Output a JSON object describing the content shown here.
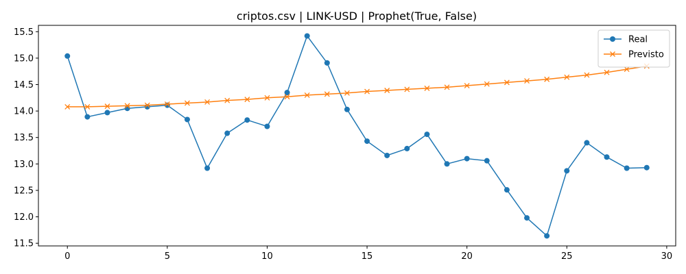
{
  "chart_data": {
    "type": "line",
    "title": "criptos.csv | LINK-USD | Prophet(True, False)",
    "xlabel": "",
    "ylabel": "",
    "x": [
      0,
      1,
      2,
      3,
      4,
      5,
      6,
      7,
      8,
      9,
      10,
      11,
      12,
      13,
      14,
      15,
      16,
      17,
      18,
      19,
      20,
      21,
      22,
      23,
      24,
      25,
      26,
      27,
      28,
      29
    ],
    "xlim": [
      -1.45,
      30.45
    ],
    "ylim": [
      11.45,
      15.62
    ],
    "x_ticks": [
      0,
      5,
      10,
      15,
      20,
      25,
      30
    ],
    "y_ticks": [
      11.5,
      12.0,
      12.5,
      13.0,
      13.5,
      14.0,
      14.5,
      15.0,
      15.5
    ],
    "x_tick_labels": [
      "0",
      "5",
      "10",
      "15",
      "20",
      "25",
      "30"
    ],
    "y_tick_labels": [
      "11.5",
      "12.0",
      "12.5",
      "13.0",
      "13.5",
      "14.0",
      "14.5",
      "15.0",
      "15.5"
    ],
    "grid": false,
    "legend_position": "top-right",
    "series": [
      {
        "name": "Real",
        "color": "#1f77b4",
        "marker": "circle",
        "values": [
          15.04,
          13.89,
          13.97,
          14.05,
          14.08,
          14.11,
          13.84,
          12.92,
          13.58,
          13.83,
          13.71,
          14.35,
          15.42,
          14.91,
          14.03,
          13.43,
          13.16,
          13.29,
          13.56,
          13.0,
          13.1,
          13.06,
          12.51,
          11.98,
          11.64,
          12.87,
          13.4,
          13.13,
          12.92,
          12.93
        ]
      },
      {
        "name": "Previsto",
        "color": "#ff7f0e",
        "marker": "x",
        "values": [
          14.08,
          14.08,
          14.09,
          14.1,
          14.11,
          14.13,
          14.15,
          14.17,
          14.2,
          14.22,
          14.25,
          14.27,
          14.3,
          14.32,
          14.34,
          14.37,
          14.39,
          14.41,
          14.43,
          14.45,
          14.48,
          14.51,
          14.54,
          14.57,
          14.6,
          14.64,
          14.68,
          14.73,
          14.79,
          14.85
        ]
      }
    ]
  }
}
